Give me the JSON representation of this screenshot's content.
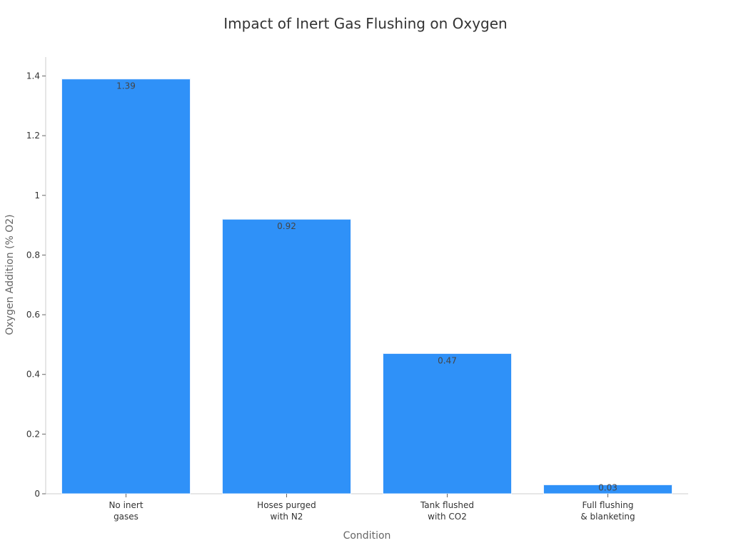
{
  "chart_data": {
    "type": "bar",
    "title": "Impact of Inert Gas Flushing on Oxygen",
    "xlabel": "Condition",
    "ylabel": "Oxygen Addition (% O2)",
    "categories": [
      [
        "No inert",
        "gases"
      ],
      [
        "Hoses purged",
        "with N2"
      ],
      [
        "Tank flushed",
        "with CO2"
      ],
      [
        "Full flushing",
        "& blanketing"
      ]
    ],
    "values": [
      1.39,
      0.92,
      0.47,
      0.03
    ],
    "data_labels": [
      "1.39",
      "0.92",
      "0.47",
      "0.03"
    ],
    "yticks": [
      0,
      0.2,
      0.4,
      0.6,
      0.8,
      1,
      1.2,
      1.4
    ],
    "ytick_labels": [
      "0",
      "0.2",
      "0.4",
      "0.6",
      "0.8",
      "1",
      "1.2",
      "1.4"
    ],
    "ylim": [
      0,
      1.46
    ],
    "grid": false,
    "legend": "none",
    "colors": {
      "bar": "#2f91f8",
      "bar_stroke": "#e9f2fe"
    }
  }
}
